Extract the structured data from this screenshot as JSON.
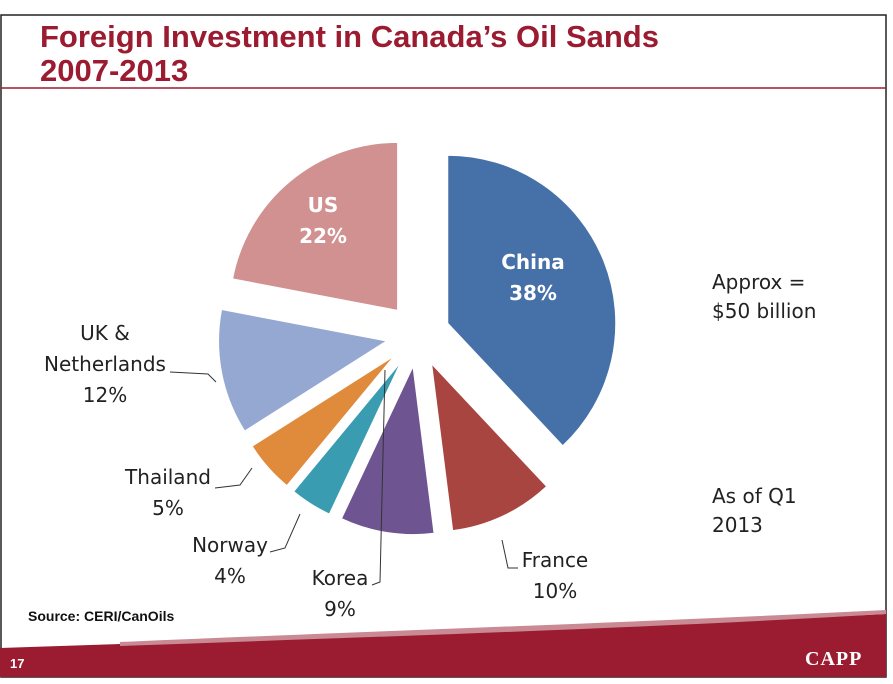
{
  "chart_data": {
    "type": "pie",
    "title": "Foreign Investment in Canada’s Oil Sands",
    "subtitle": "2007-2013",
    "categories": [
      "China",
      "France",
      "Korea",
      "Norway",
      "Thailand",
      "UK & Netherlands",
      "US"
    ],
    "values": [
      38,
      10,
      9,
      4,
      5,
      12,
      22
    ],
    "value_labels": [
      "38%",
      "10%",
      "9%",
      "4%",
      "5%",
      "12%",
      "22%"
    ],
    "colors": [
      "#4670a8",
      "#a84541",
      "#6e5591",
      "#3a9cb0",
      "#e08a3c",
      "#94a8d2",
      "#d09190"
    ],
    "annotations": [
      "Approx = $50 billion",
      "As of Q1 2013"
    ],
    "source": "Source: CERI/CanOils",
    "page_number": "17",
    "logo": "CAPP"
  }
}
